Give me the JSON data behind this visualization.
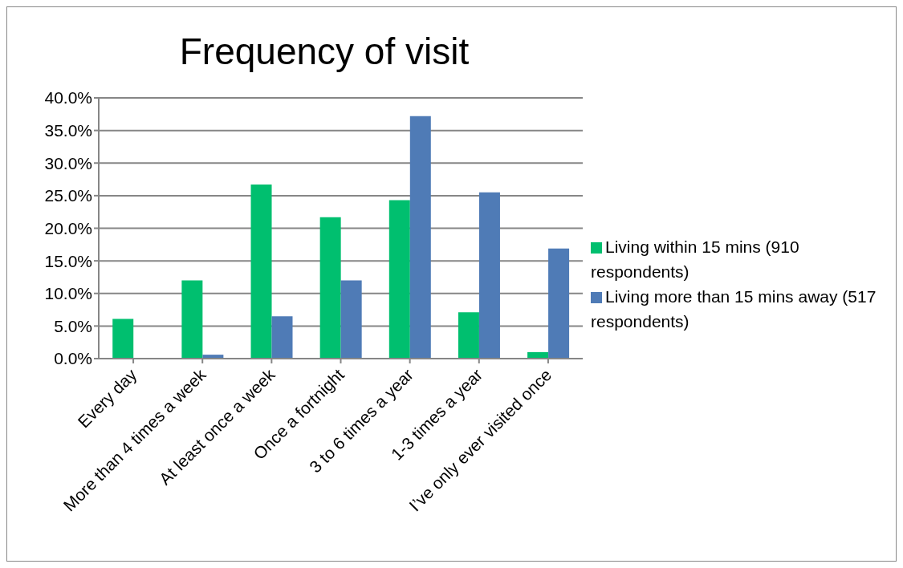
{
  "chart_data": {
    "type": "bar",
    "title": "Frequency of visit",
    "categories": [
      "Every day",
      "More than 4 times a week",
      "At least once a week",
      "Once a fortnight",
      "3 to 6 times a year",
      "1-3 times a year",
      "I’ve only ever visited once"
    ],
    "series": [
      {
        "name": "Living within 15 mins (910 respondents)",
        "color": "#00bf6f",
        "values": [
          6.1,
          12.0,
          26.7,
          21.7,
          24.3,
          7.1,
          1.0
        ]
      },
      {
        "name": "Living more than 15 mins away (517 respondents)",
        "color": "#4f7bb6",
        "values": [
          0,
          0.6,
          6.5,
          12.0,
          37.2,
          25.5,
          16.9
        ]
      }
    ],
    "ylim": [
      0,
      40
    ],
    "yticks": [
      {
        "value": 0,
        "label": "0.0%"
      },
      {
        "value": 5,
        "label": "5.0%"
      },
      {
        "value": 10,
        "label": "10.0%"
      },
      {
        "value": 15,
        "label": "15.0%"
      },
      {
        "value": 20,
        "label": "20.0%"
      },
      {
        "value": 25,
        "label": "25.0%"
      },
      {
        "value": 30,
        "label": "30.0%"
      },
      {
        "value": 35,
        "label": "35.0%"
      },
      {
        "value": 40,
        "label": "40.0%"
      }
    ],
    "grid": "y",
    "legend": "right"
  }
}
